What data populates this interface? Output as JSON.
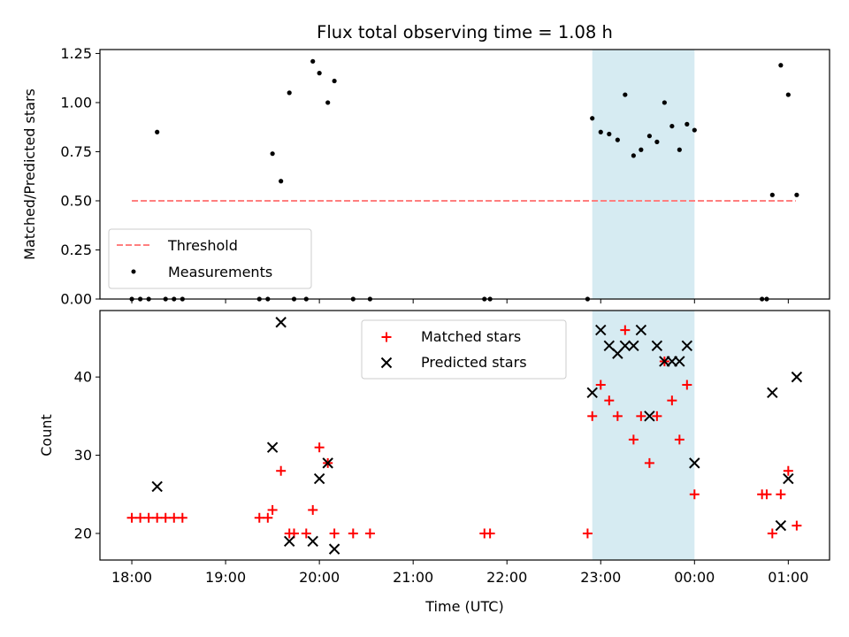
{
  "chart_data": [
    {
      "type": "scatter",
      "title": "Flux total observing time = 1.08 h",
      "xlabel": "",
      "ylabel": "Matched/Predicted stars",
      "xlim": [
        -0.34,
        7.44
      ],
      "ylim": [
        0,
        1.27
      ],
      "yticks": [
        0,
        0.25,
        0.5,
        0.75,
        1.0,
        1.25
      ],
      "ytick_labels": [
        "0.00",
        "0.25",
        "0.50",
        "0.75",
        "1.00",
        "1.25"
      ],
      "span": [
        4.91,
        6.0
      ],
      "threshold": {
        "name": "Threshold",
        "y": 0.5,
        "x": [
          0,
          7.08
        ],
        "color": "#ff7f7f"
      },
      "series": [
        {
          "name": "Measurements",
          "color": "#000000",
          "x": [
            0.0,
            0.09,
            0.18,
            0.27,
            0.36,
            0.45,
            0.54,
            1.36,
            1.45,
            1.5,
            1.59,
            1.68,
            1.73,
            1.86,
            1.93,
            2.0,
            2.09,
            2.16,
            2.36,
            2.54,
            3.76,
            3.82,
            4.86,
            4.91,
            5.0,
            5.09,
            5.18,
            5.26,
            5.35,
            5.43,
            5.52,
            5.6,
            5.68,
            5.76,
            5.84,
            5.92,
            6.0,
            6.72,
            6.77,
            6.83,
            6.92,
            7.0,
            7.09
          ],
          "y": [
            0.0,
            0.0,
            0.0,
            0.85,
            0.0,
            0.0,
            0.0,
            0.0,
            0.0,
            0.74,
            0.6,
            1.05,
            0.0,
            0.0,
            1.21,
            1.15,
            1.0,
            1.11,
            0.0,
            0.0,
            0.0,
            0.0,
            0.0,
            0.92,
            0.85,
            0.84,
            0.81,
            1.04,
            0.73,
            0.76,
            0.83,
            0.8,
            1.0,
            0.88,
            0.76,
            0.89,
            0.86,
            0.0,
            0.0,
            0.53,
            1.19,
            1.04,
            0.53
          ]
        }
      ],
      "legend": [
        "Threshold",
        "Measurements"
      ],
      "legend_position": "lower-left"
    },
    {
      "type": "scatter",
      "title": "",
      "xlabel": "Time (UTC)",
      "ylabel": "Count",
      "xlim": [
        -0.34,
        7.44
      ],
      "ylim": [
        16.6,
        48.5
      ],
      "yticks": [
        20,
        30,
        40
      ],
      "ytick_labels": [
        "20",
        "30",
        "40"
      ],
      "xticks": [
        0,
        1,
        2,
        3,
        4,
        5,
        6,
        7
      ],
      "xtick_labels": [
        "18:00",
        "19:00",
        "20:00",
        "21:00",
        "22:00",
        "23:00",
        "00:00",
        "01:00"
      ],
      "span": [
        4.91,
        6.0
      ],
      "series": [
        {
          "name": "Matched stars",
          "marker": "plus",
          "color": "#ff0000",
          "x": [
            0.0,
            0.09,
            0.18,
            0.27,
            0.36,
            0.45,
            0.54,
            1.36,
            1.45,
            1.5,
            1.59,
            1.68,
            1.73,
            1.86,
            1.93,
            2.0,
            2.09,
            2.16,
            2.36,
            2.54,
            3.76,
            3.82,
            4.86,
            4.91,
            5.0,
            5.09,
            5.18,
            5.26,
            5.35,
            5.43,
            5.52,
            5.6,
            5.68,
            5.76,
            5.84,
            5.92,
            6.0,
            6.72,
            6.77,
            6.83,
            6.92,
            7.0,
            7.09
          ],
          "y": [
            22,
            22,
            22,
            22,
            22,
            22,
            22,
            22,
            22,
            23,
            28,
            20,
            20,
            20,
            23,
            31,
            29,
            20,
            20,
            20,
            20,
            20,
            20,
            35,
            39,
            37,
            35,
            46,
            32,
            35,
            29,
            35,
            42,
            37,
            32,
            39,
            25,
            25,
            25,
            20,
            25,
            28,
            21
          ]
        },
        {
          "name": "Predicted stars",
          "marker": "x",
          "color": "#000000",
          "x": [
            0.27,
            1.5,
            1.59,
            1.68,
            1.93,
            2.0,
            2.09,
            2.16,
            4.91,
            5.0,
            5.09,
            5.18,
            5.26,
            5.35,
            5.43,
            5.52,
            5.6,
            5.68,
            5.76,
            5.84,
            5.92,
            6.0,
            6.83,
            6.92,
            7.0,
            7.09
          ],
          "y": [
            26,
            31,
            47,
            19,
            19,
            27,
            29,
            18,
            38,
            46,
            44,
            43,
            44,
            44,
            46,
            35,
            44,
            42,
            42,
            42,
            44,
            29,
            38,
            21,
            27,
            40
          ]
        }
      ],
      "legend": [
        "Matched stars",
        "Predicted stars"
      ],
      "legend_position": "upper-center"
    }
  ]
}
